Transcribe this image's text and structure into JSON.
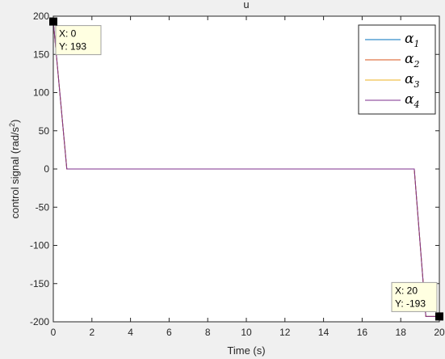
{
  "chart_data": {
    "type": "line",
    "title": "u",
    "xlabel": "Time (s)",
    "ylabel": "control signal (rad/s",
    "ylabel_sup": "2",
    "ylabel_close": ")",
    "xlim": [
      0,
      20
    ],
    "ylim": [
      -200,
      200
    ],
    "xticks": [
      0,
      2,
      4,
      6,
      8,
      10,
      12,
      14,
      16,
      18,
      20
    ],
    "yticks": [
      200,
      150,
      100,
      50,
      0,
      -50,
      -100,
      -150,
      -200
    ],
    "grid": false,
    "legend_position": "top-right",
    "series": [
      {
        "name": "α1",
        "color": "#0072bd",
        "x": [
          0,
          0.7,
          18.7,
          19.3,
          20
        ],
        "y": [
          193,
          0,
          0,
          -193,
          -193
        ]
      },
      {
        "name": "α2",
        "color": "#d95319",
        "x": [
          0,
          0.7,
          18.7,
          19.3,
          20
        ],
        "y": [
          193,
          0,
          0,
          -193,
          -193
        ]
      },
      {
        "name": "α3",
        "color": "#edb120",
        "x": [
          0,
          0.7,
          18.7,
          19.3,
          20
        ],
        "y": [
          193,
          0,
          0,
          -193,
          -193
        ]
      },
      {
        "name": "α4",
        "color": "#7e2f8e",
        "x": [
          0,
          0.7,
          18.7,
          19.3,
          20
        ],
        "y": [
          193,
          0,
          0,
          -193,
          -193
        ]
      }
    ],
    "legend": [
      {
        "symbol": "α",
        "sub": "1",
        "color": "#0072bd"
      },
      {
        "symbol": "α",
        "sub": "2",
        "color": "#d95319"
      },
      {
        "symbol": "α",
        "sub": "3",
        "color": "#edb120"
      },
      {
        "symbol": "α",
        "sub": "4",
        "color": "#7e2f8e"
      }
    ],
    "datatips": [
      {
        "x": 0,
        "y": 193,
        "xtext": "X: 0",
        "ytext": "Y: 193"
      },
      {
        "x": 20,
        "y": -193,
        "xtext": "X: 20",
        "ytext": "Y: -193"
      }
    ]
  }
}
